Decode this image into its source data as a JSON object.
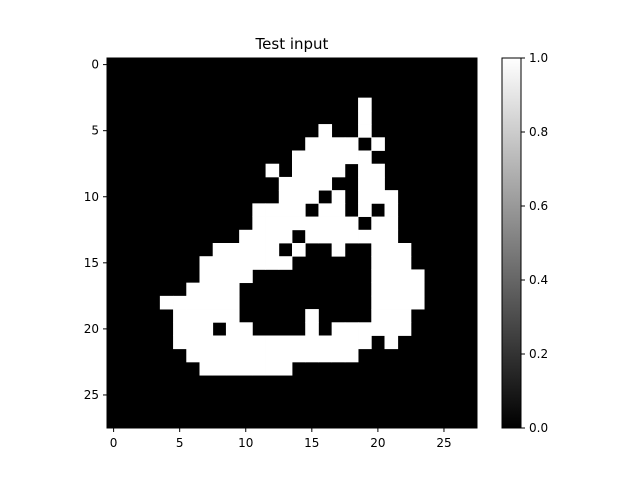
{
  "chart_data": {
    "type": "heatmap",
    "title": "Test input",
    "xlabel": "",
    "ylabel": "",
    "colormap": "gray",
    "grid": false,
    "rows": 28,
    "cols": 28,
    "x_ticks": [
      "0",
      "5",
      "10",
      "15",
      "20",
      "25"
    ],
    "y_ticks": [
      "0",
      "5",
      "10",
      "15",
      "20",
      "25"
    ],
    "colorbar": {
      "range": [
        0.0,
        1.0
      ],
      "ticks": [
        "0.0",
        "0.2",
        "0.4",
        "0.6",
        "0.8",
        "1.0"
      ]
    },
    "on_value": 1.0,
    "off_value": 0.0,
    "white_pixel_rows": [
      [],
      [],
      [],
      [
        19
      ],
      [
        19
      ],
      [
        16,
        19
      ],
      [
        15,
        16,
        17,
        18,
        20
      ],
      [
        14,
        15,
        16,
        17,
        18,
        19
      ],
      [
        12,
        14,
        15,
        16,
        17,
        19,
        20
      ],
      [
        13,
        14,
        15,
        16,
        19,
        20
      ],
      [
        13,
        14,
        15,
        17,
        19,
        20,
        21
      ],
      [
        11,
        12,
        13,
        14,
        16,
        17,
        19,
        21
      ],
      [
        11,
        12,
        13,
        14,
        15,
        16,
        17,
        18,
        20,
        21
      ],
      [
        10,
        11,
        12,
        13,
        15,
        16,
        17,
        18,
        19,
        20,
        21
      ],
      [
        8,
        9,
        10,
        11,
        12,
        14,
        17,
        20,
        21,
        22
      ],
      [
        7,
        8,
        9,
        10,
        11,
        12,
        13,
        20,
        21,
        22
      ],
      [
        7,
        8,
        9,
        10,
        20,
        21,
        22,
        23
      ],
      [
        6,
        7,
        8,
        9,
        20,
        21,
        22,
        23
      ],
      [
        4,
        5,
        6,
        7,
        8,
        9,
        20,
        21,
        22,
        23
      ],
      [
        5,
        6,
        7,
        8,
        9,
        15,
        20,
        21,
        22
      ],
      [
        5,
        6,
        7,
        9,
        10,
        15,
        17,
        18,
        19,
        20,
        21,
        22
      ],
      [
        5,
        6,
        7,
        8,
        9,
        10,
        11,
        12,
        13,
        14,
        15,
        16,
        17,
        18,
        19,
        21
      ],
      [
        6,
        7,
        8,
        9,
        10,
        11,
        12,
        13,
        14,
        15,
        16,
        17,
        18
      ],
      [
        7,
        8,
        9,
        10,
        11,
        12,
        13
      ],
      [],
      [],
      [],
      []
    ]
  }
}
